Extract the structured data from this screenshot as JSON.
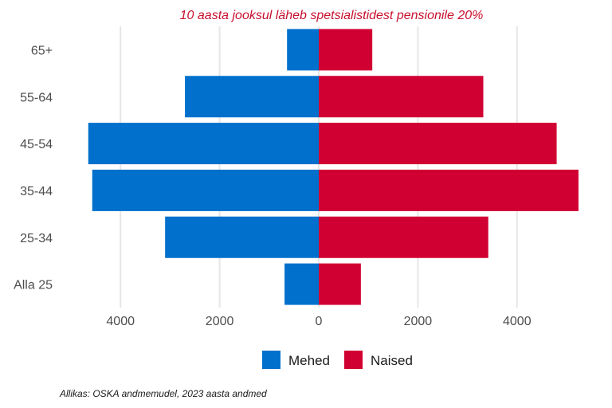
{
  "chart_data": {
    "type": "bar",
    "orientation": "horizontal",
    "layout": "population-pyramid",
    "title": "10 aasta jooksul läheb spetsialistidest pensionile 20%",
    "caption": "Allikas: OSKA andmemudel, 2023 aasta andmed",
    "categories": [
      "65+",
      "55-64",
      "45-54",
      "35-44",
      "25-34",
      "Alla 25"
    ],
    "series": [
      {
        "name": "Mehed",
        "color": "#0070cc",
        "side": "left",
        "values": [
          640,
          2700,
          4650,
          4570,
          3100,
          690
        ]
      },
      {
        "name": "Naised",
        "color": "#d10032",
        "side": "right",
        "values": [
          1080,
          3320,
          4800,
          5240,
          3420,
          850
        ]
      }
    ],
    "xlim": [
      -4650,
      5250
    ],
    "xticks": [
      -4000,
      -2000,
      0,
      2000,
      4000
    ],
    "xtick_labels": [
      "4000",
      "2000",
      "0",
      "2000",
      "4000"
    ],
    "grid": "vertical major",
    "legend_position": "bottom",
    "title_color": "#c8102e"
  }
}
